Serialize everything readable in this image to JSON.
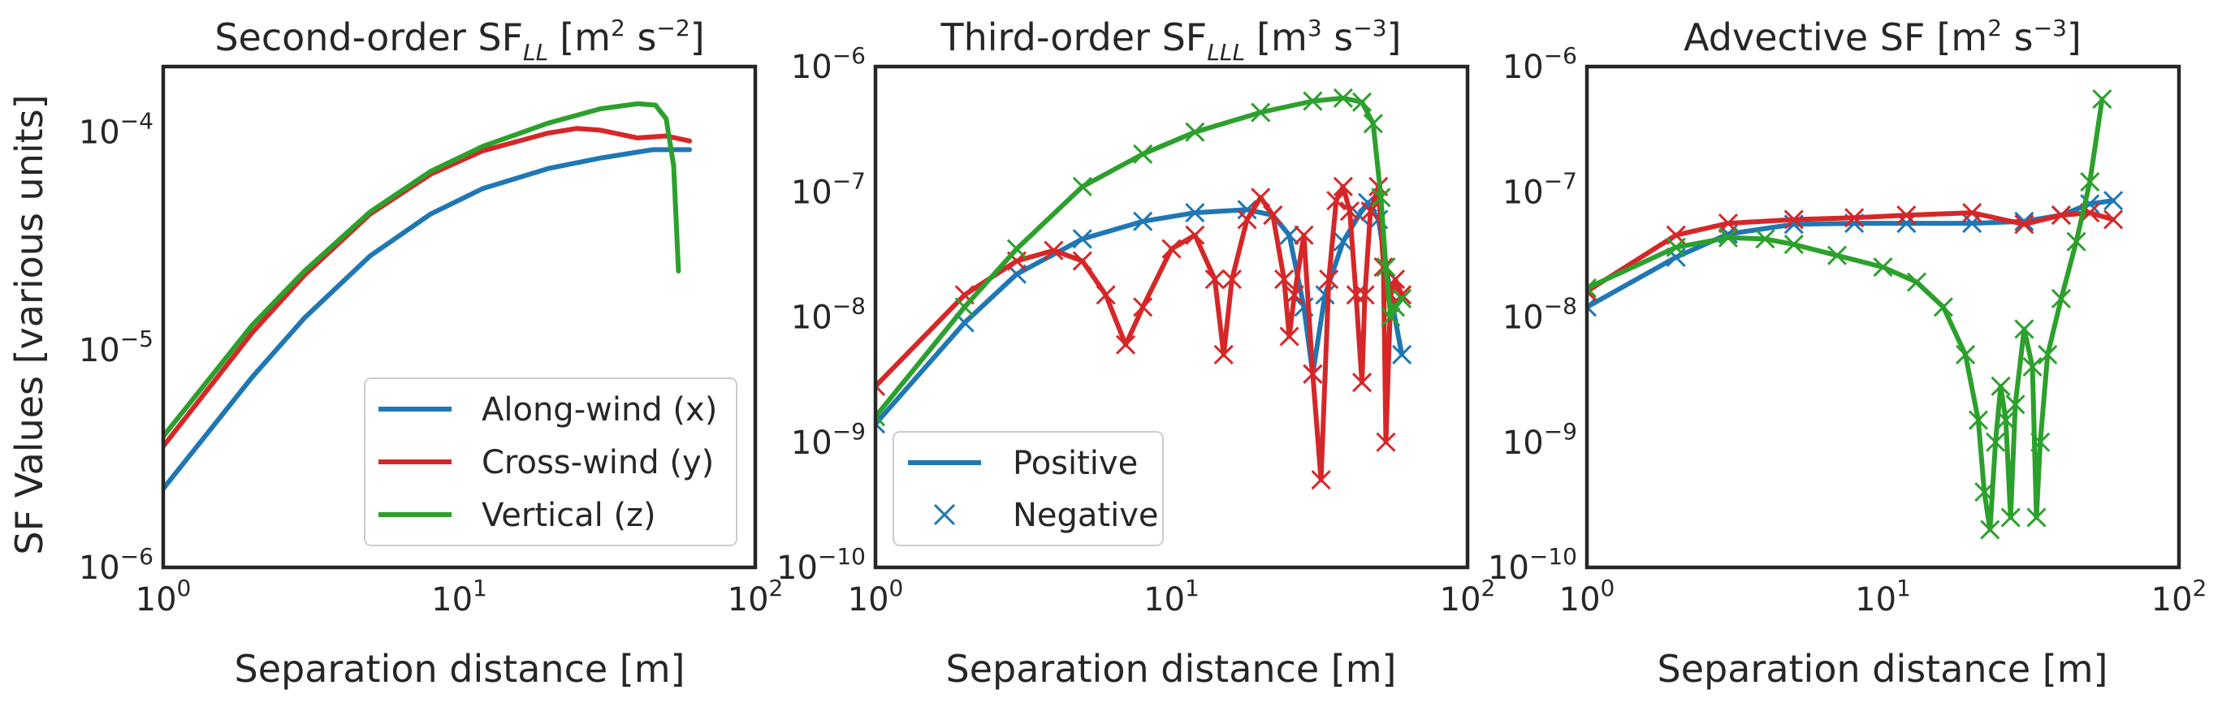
{
  "figure": {
    "ylabel": "SF Values [various units]",
    "panels": [
      {
        "title": "Second-order SF",
        "title_sub": "LL",
        "title_units": "[m",
        "title_unit_exp1": "2",
        "title_mid": " s",
        "title_unit_exp2": "−2",
        "title_close": "]"
      },
      {
        "title": "Third-order SF",
        "title_sub": "LLL",
        "title_units": "[m",
        "title_unit_exp1": "3",
        "title_mid": " s",
        "title_unit_exp2": "−3",
        "title_close": "]"
      },
      {
        "title": "Advective SF",
        "title_sub": "",
        "title_units": "[m",
        "title_unit_exp1": "2",
        "title_mid": " s",
        "title_unit_exp2": "−3",
        "title_close": "]"
      }
    ],
    "xlabel": "Separation distance [m]",
    "x_ticks": [
      {
        "base": "10",
        "exp": "0"
      },
      {
        "base": "10",
        "exp": "1"
      },
      {
        "base": "10",
        "exp": "2"
      }
    ],
    "legend1": [
      "Along-wind (x)",
      "Cross-wind (y)",
      "Vertical (z)"
    ],
    "legend2": [
      "Positive",
      "Negative"
    ],
    "colors": {
      "x": "#1f77b4",
      "y": "#d62728",
      "z": "#2ca02c",
      "frame": "#262626"
    }
  },
  "chart_data": [
    {
      "type": "line",
      "title": "Second-order SF_LL [m^2 s^-2]",
      "xlabel": "Separation distance [m]",
      "ylabel": "SF Values [various units]",
      "x_scale": "log",
      "y_scale": "log",
      "xlim": [
        1,
        100
      ],
      "ylim": [
        1e-06,
        0.0002
      ],
      "y_ticks": [
        {
          "base": "10",
          "exp": "−6"
        },
        {
          "base": "10",
          "exp": "−5"
        },
        {
          "base": "10",
          "exp": "−4"
        }
      ],
      "legend_position": "lower right",
      "series": [
        {
          "name": "Along-wind (x)",
          "color": "#1f77b4",
          "x": [
            1,
            2,
            3,
            5,
            8,
            12,
            20,
            30,
            45,
            60
          ],
          "y": [
            2.3e-06,
            7.5e-06,
            1.4e-05,
            2.7e-05,
            4.2e-05,
            5.5e-05,
            6.8e-05,
            7.6e-05,
            8.3e-05,
            8.3e-05
          ]
        },
        {
          "name": "Cross-wind (y)",
          "color": "#d62728",
          "x": [
            1,
            2,
            3,
            5,
            8,
            12,
            20,
            25,
            30,
            40,
            50,
            60
          ],
          "y": [
            3.6e-06,
            1.2e-05,
            2.2e-05,
            4.2e-05,
            6.4e-05,
            8.2e-05,
            9.9e-05,
            0.000104,
            0.000102,
            9.4e-05,
            9.6e-05,
            9.1e-05
          ]
        },
        {
          "name": "Vertical (z)",
          "color": "#2ca02c",
          "x": [
            1,
            2,
            3,
            5,
            8,
            12,
            20,
            30,
            40,
            46,
            50,
            53,
            55
          ],
          "y": [
            4e-06,
            1.3e-05,
            2.3e-05,
            4.3e-05,
            6.6e-05,
            8.6e-05,
            0.00011,
            0.000128,
            0.000135,
            0.000133,
            0.000115,
            7e-05,
            2.3e-05
          ]
        }
      ]
    },
    {
      "type": "line",
      "title": "Third-order SF_LLL [m^3 s^-3]",
      "xlabel": "Separation distance [m]",
      "x_scale": "log",
      "y_scale": "log",
      "xlim": [
        1,
        100
      ],
      "ylim": [
        1e-10,
        1e-06
      ],
      "y_ticks": [
        {
          "base": "10",
          "exp": "−10"
        },
        {
          "base": "10",
          "exp": "−9"
        },
        {
          "base": "10",
          "exp": "−8"
        },
        {
          "base": "10",
          "exp": "−7"
        },
        {
          "base": "10",
          "exp": "−6"
        }
      ],
      "legend_position": "lower left",
      "series": [
        {
          "name": "x",
          "color": "#1f77b4",
          "x": [
            1,
            2,
            3,
            5,
            8,
            12,
            18,
            22,
            25,
            28,
            30,
            33,
            38,
            43,
            46,
            50,
            55,
            60
          ],
          "y": [
            1.4e-09,
            9e-09,
            2.2e-08,
            4.2e-08,
            5.8e-08,
            6.8e-08,
            7.2e-08,
            6.5e-08,
            4.5e-08,
            1.2e-08,
            3.5e-09,
            1.5e-08,
            4e-08,
            6.5e-08,
            8.2e-08,
            6e-08,
            1.5e-08,
            5e-09
          ]
        },
        {
          "name": "y",
          "color": "#d62728",
          "x": [
            1,
            2,
            3,
            4,
            5,
            6,
            7,
            8,
            10,
            12,
            14,
            15,
            16,
            18,
            20,
            22,
            24,
            25,
            26,
            28,
            30,
            32,
            34,
            36,
            38,
            40,
            42,
            44,
            45,
            47,
            50,
            52,
            53,
            55,
            57,
            60
          ],
          "y": [
            2.8e-09,
            1.5e-08,
            2.8e-08,
            3.4e-08,
            2.8e-08,
            1.5e-08,
            6e-09,
            1.2e-08,
            3.5e-08,
            4.5e-08,
            2e-08,
            5e-09,
            2e-08,
            6e-08,
            9e-08,
            6.5e-08,
            2e-08,
            7e-09,
            1.5e-08,
            4.5e-08,
            3.5e-09,
            5e-10,
            2e-08,
            8.5e-08,
            1.1e-07,
            7e-08,
            1.5e-08,
            3e-09,
            1.5e-08,
            7e-08,
            1.1e-07,
            2.5e-08,
            1e-09,
            1.5e-08,
            2e-08,
            1.5e-08
          ]
        },
        {
          "name": "z",
          "color": "#2ca02c",
          "x": [
            1,
            2,
            3,
            5,
            8,
            12,
            20,
            30,
            38,
            44,
            48,
            51,
            53,
            55,
            57,
            60
          ],
          "y": [
            1.6e-09,
            1.2e-08,
            3.5e-08,
            1.1e-07,
            2e-07,
            3e-07,
            4.3e-07,
            5.3e-07,
            5.6e-07,
            5.2e-07,
            3.5e-07,
            9e-08,
            2.5e-08,
            1e-08,
            1.2e-08,
            1.4e-08
          ]
        }
      ]
    },
    {
      "type": "line",
      "title": "Advective SF [m^2 s^-3]",
      "xlabel": "Separation distance [m]",
      "x_scale": "log",
      "y_scale": "log",
      "xlim": [
        1,
        100
      ],
      "ylim": [
        1e-10,
        1e-06
      ],
      "y_ticks": [
        {
          "base": "10",
          "exp": "−10"
        },
        {
          "base": "10",
          "exp": "−9"
        },
        {
          "base": "10",
          "exp": "−8"
        },
        {
          "base": "10",
          "exp": "−7"
        },
        {
          "base": "10",
          "exp": "−6"
        }
      ],
      "series": [
        {
          "name": "x",
          "color": "#1f77b4",
          "x": [
            1,
            2,
            3,
            5,
            8,
            12,
            20,
            30,
            40,
            50,
            60
          ],
          "y": [
            1.2e-08,
            3e-08,
            4.6e-08,
            5.5e-08,
            5.6e-08,
            5.6e-08,
            5.6e-08,
            5.8e-08,
            6.5e-08,
            8e-08,
            8.5e-08
          ]
        },
        {
          "name": "y",
          "color": "#d62728",
          "x": [
            1,
            2,
            3,
            5,
            8,
            12,
            20,
            30,
            40,
            50,
            60
          ],
          "y": [
            1.6e-08,
            4.5e-08,
            5.6e-08,
            6e-08,
            6.2e-08,
            6.5e-08,
            6.8e-08,
            5.5e-08,
            6.5e-08,
            6.8e-08,
            6e-08
          ]
        },
        {
          "name": "z",
          "color": "#2ca02c",
          "x": [
            1,
            2,
            3,
            4,
            5,
            7,
            10,
            13,
            16,
            19,
            21,
            22,
            23,
            24,
            25,
            26,
            27,
            28,
            30,
            32,
            33,
            34,
            36,
            40,
            45,
            50,
            55
          ],
          "y": [
            1.7e-08,
            3.6e-08,
            4.3e-08,
            4.2e-08,
            3.8e-08,
            3.1e-08,
            2.5e-08,
            1.9e-08,
            1.2e-08,
            5e-09,
            1.5e-09,
            4e-10,
            2e-10,
            1e-09,
            2.8e-09,
            1.5e-09,
            2.5e-10,
            2e-09,
            8e-09,
            4e-09,
            2.5e-10,
            1e-09,
            5e-09,
            1.4e-08,
            4e-08,
            1.2e-07,
            5.5e-07
          ]
        }
      ]
    }
  ]
}
